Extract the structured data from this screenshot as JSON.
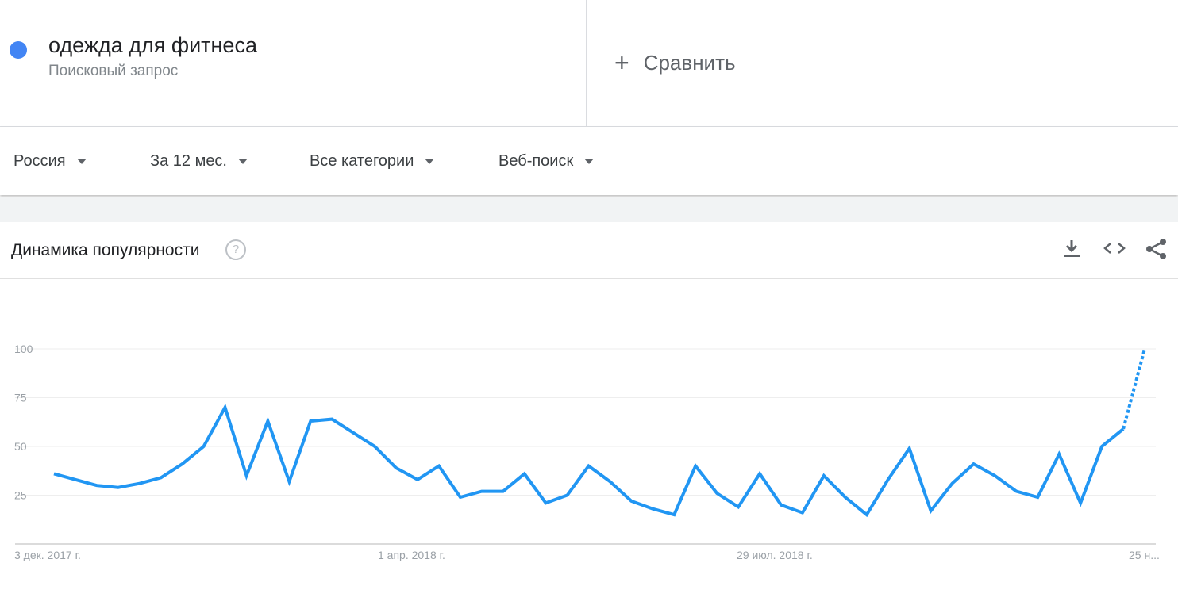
{
  "search_term": {
    "name": "одежда для фитнеса",
    "type_label": "Поисковый запрос",
    "color": "#4285f4"
  },
  "compare": {
    "plus": "+",
    "label": "Сравнить"
  },
  "filters": [
    {
      "label": "Россия"
    },
    {
      "label": "За 12 мес."
    },
    {
      "label": "Все категории"
    },
    {
      "label": "Веб-поиск"
    }
  ],
  "card": {
    "title": "Динамика популярности",
    "help_icon": "question-circle-icon",
    "actions": [
      "download-icon",
      "embed-code-icon",
      "share-icon"
    ]
  },
  "chart_data": {
    "type": "line",
    "title": "",
    "xlabel": "",
    "ylabel": "",
    "ylim": [
      0,
      100
    ],
    "y_ticks": [
      25,
      50,
      75,
      100
    ],
    "x_tick_labels": [
      "3 дек. 2017 г.",
      "1 апр. 2018 г.",
      "29 июл. 2018 г.",
      "25 н..."
    ],
    "x_start": "2017-12-03",
    "x_step_days": 7,
    "line_color": "#2196f3",
    "partial_last_point": true,
    "series": [
      {
        "values": [
          36,
          33,
          30,
          29,
          31,
          34,
          41,
          50,
          70,
          35,
          63,
          32,
          63,
          64,
          57,
          50,
          39,
          33,
          40,
          24,
          27,
          27,
          36,
          21,
          25,
          40,
          32,
          22,
          18,
          15,
          40,
          26,
          19,
          36,
          20,
          16,
          35,
          24,
          15,
          33,
          49,
          17,
          31,
          41,
          35,
          27,
          24,
          46,
          21,
          50,
          59,
          100
        ]
      }
    ]
  }
}
